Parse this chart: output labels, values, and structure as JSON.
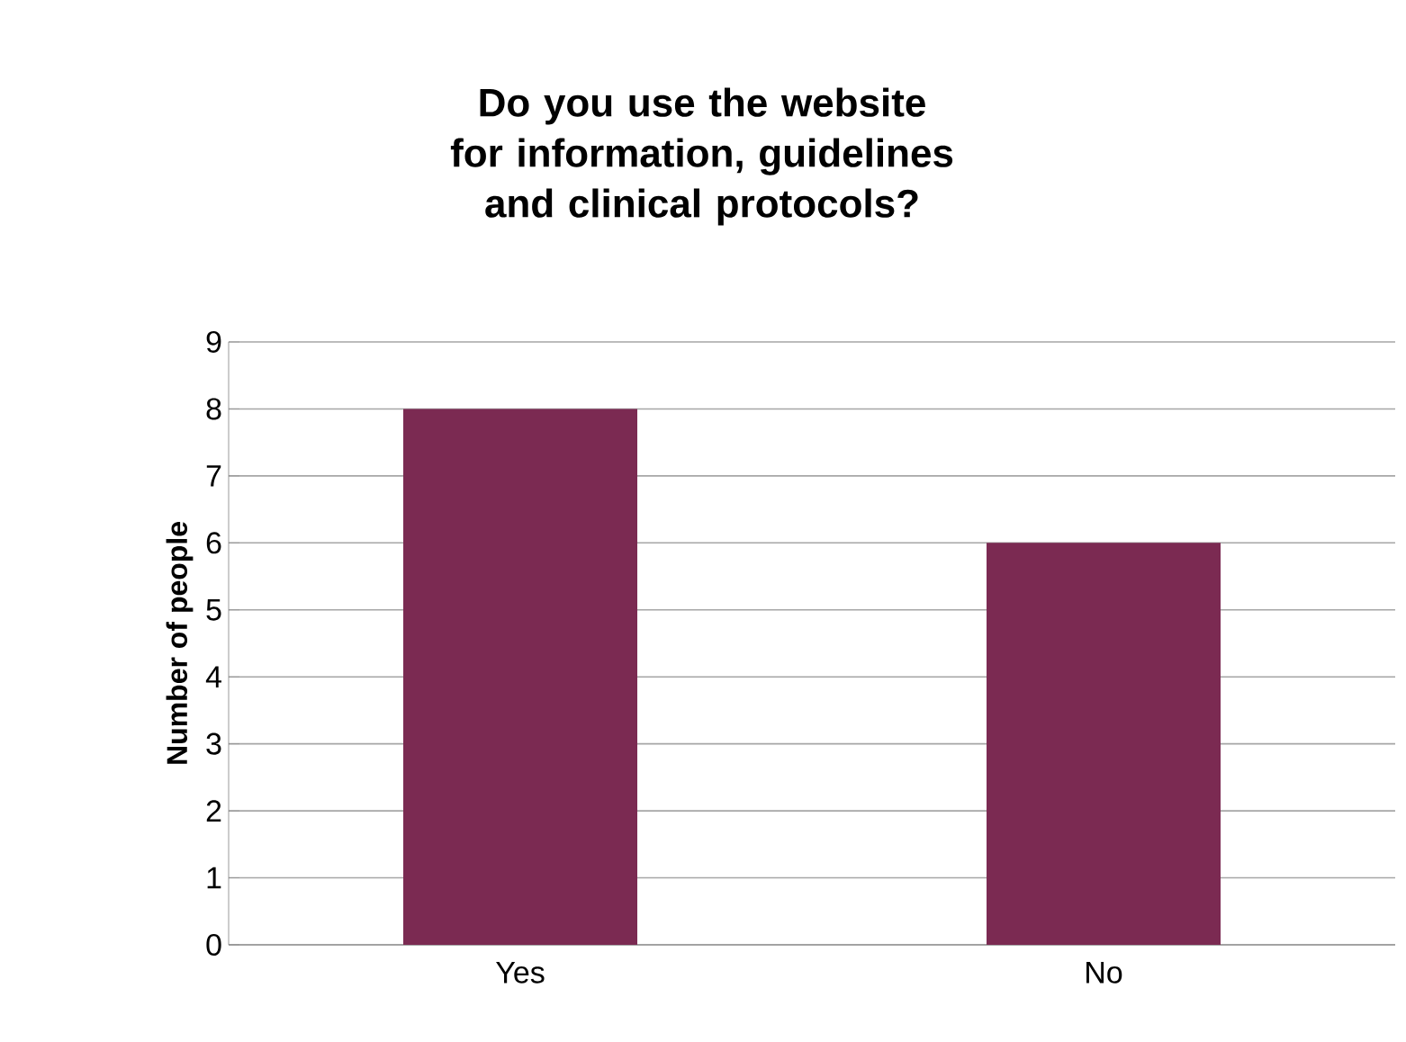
{
  "chart_data": {
    "type": "bar",
    "title": "Do you use the website for information, guidelines and clinical protocols?",
    "ylabel": "Number of people",
    "categories": [
      "Yes",
      "No"
    ],
    "values": [
      8,
      6
    ],
    "color": "#7b2a52",
    "ylim": [
      0,
      9
    ],
    "yticks": [
      0,
      1,
      2,
      3,
      4,
      5,
      6,
      7,
      8,
      9
    ],
    "grid": "y"
  }
}
